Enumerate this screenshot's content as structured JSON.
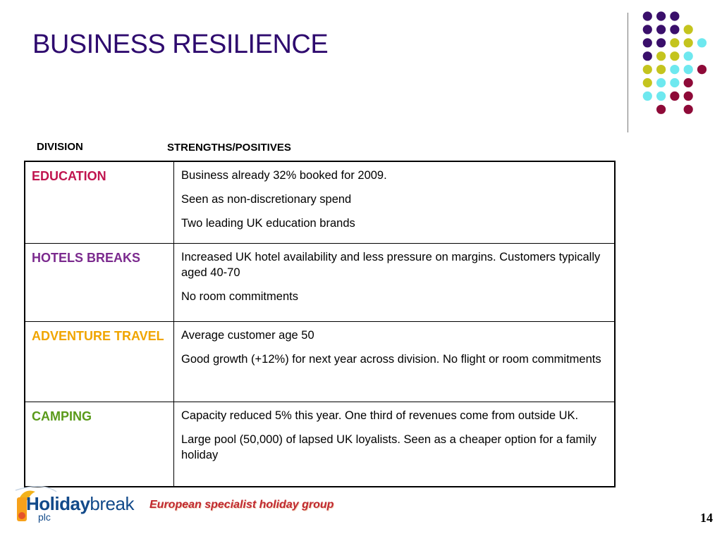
{
  "slide": {
    "title": "BUSINESS RESILIENCE",
    "page_number": "14",
    "tagline": "European specialist holiday group"
  },
  "logo": {
    "brand_bold": "Holiday",
    "brand_light": "break",
    "suffix": "plc"
  },
  "table": {
    "headers": {
      "division": "DIVISION",
      "strengths": "STRENGTHS/POSITIVES"
    },
    "rows": [
      {
        "division": "EDUCATION",
        "color": "#c0144f",
        "points": [
          "Business already 32%  booked for 2009.",
          "Seen as non-discretionary spend",
          "Two leading UK education brands"
        ]
      },
      {
        "division": "HOTELS BREAKS",
        "color": "#7b2a8e",
        "points": [
          "Increased UK hotel availability and less pressure on margins. Customers typically aged 40-70",
          "No room commitments"
        ]
      },
      {
        "division": "ADVENTURE TRAVEL",
        "color": "#f0a500",
        "points": [
          "Average customer age 50",
          "Good growth (+12%) for next year across division. No flight or room commitments"
        ]
      },
      {
        "division": "CAMPING",
        "color": "#5a9a1a",
        "points": [
          "Capacity reduced 5% this year. One third of revenues come from outside UK.",
          "Large pool (50,000) of lapsed UK loyalists. Seen as a cheaper option for a family holiday"
        ]
      }
    ]
  },
  "decor": {
    "dot_colors": {
      "purple": "#3a0f6b",
      "olive": "#c4c41e",
      "cyan": "#6ee8ef",
      "maroon": "#8e0a38"
    }
  }
}
